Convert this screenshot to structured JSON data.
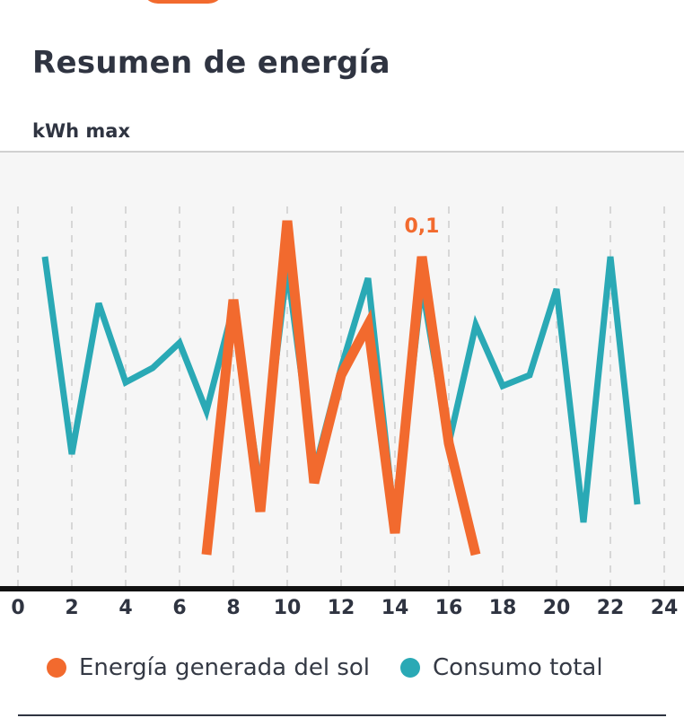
{
  "header": {
    "title": "Resumen de energía",
    "unit_label": "kWh max"
  },
  "colors": {
    "accent": "#f26a2e",
    "solar": "#f26a2e",
    "consumption": "#2aa9b5",
    "plot_bg": "#f6f6f6",
    "grid": "#d7d7d7",
    "axis": "#111111"
  },
  "chart_data": {
    "type": "line",
    "title": "Resumen de energía",
    "xlabel": "",
    "ylabel": "kWh max",
    "x_ticks": [
      0,
      2,
      4,
      6,
      8,
      10,
      12,
      14,
      16,
      18,
      20,
      22,
      24
    ],
    "xlim": [
      0,
      24
    ],
    "ylim": [
      0,
      0.1
    ],
    "peak_label": "0,1",
    "series": [
      {
        "name": "Energía generada del sol",
        "color": "#f26a2e",
        "x": [
          7,
          8,
          9,
          10,
          11,
          12,
          13,
          14,
          15,
          16,
          17
        ],
        "y": [
          0.004,
          0.075,
          0.016,
          0.097,
          0.024,
          0.054,
          0.068,
          0.01,
          0.087,
          0.035,
          0.004
        ]
      },
      {
        "name": "Consumo total",
        "color": "#2aa9b5",
        "x": [
          1,
          2,
          3,
          4,
          5,
          6,
          7,
          8,
          9,
          10,
          11,
          12,
          13,
          14,
          15,
          16,
          17,
          18,
          19,
          20,
          21,
          22,
          23
        ],
        "y": [
          0.087,
          0.032,
          0.074,
          0.052,
          0.056,
          0.063,
          0.044,
          0.073,
          0.022,
          0.084,
          0.027,
          0.056,
          0.081,
          0.012,
          0.079,
          0.035,
          0.068,
          0.051,
          0.054,
          0.078,
          0.013,
          0.087,
          0.018
        ]
      }
    ],
    "legend": [
      "Energía generada del sol",
      "Consumo total"
    ]
  }
}
